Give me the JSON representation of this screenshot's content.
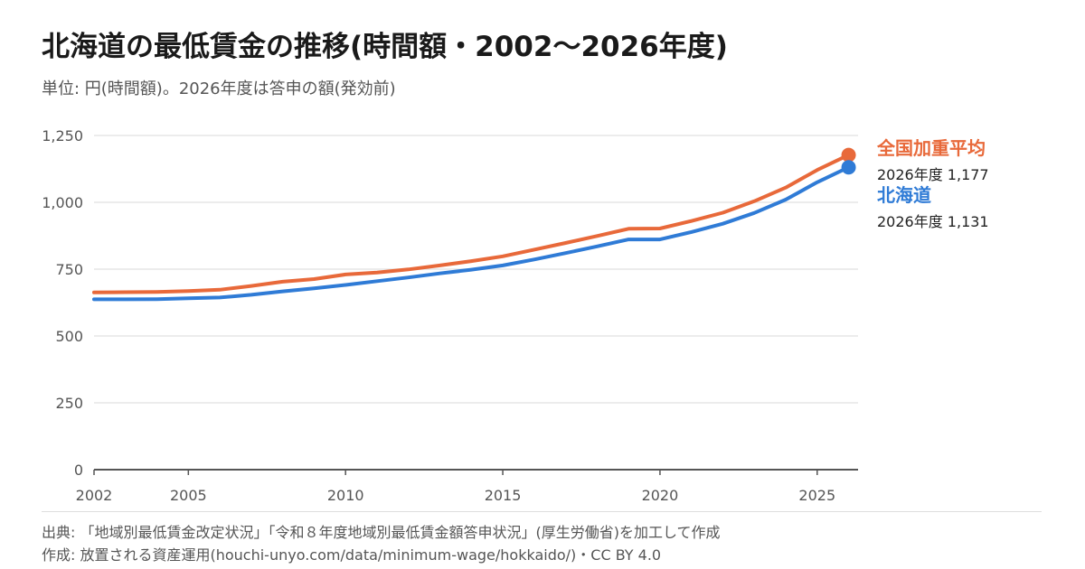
{
  "title": "北海道の最低賃金の推移(時間額・2002〜2026年度)",
  "subtitle": "単位: 円(時間額)。2026年度は答申の額(発効前)",
  "source": "出典: 「地域別最低賃金改定状況」「令和８年度地域別最低賃金額答申状況」(厚生労働省)を加工して作成",
  "credit": "作成: 放置される資産運用(houchi-unyo.com/data/minimum-wage/hokkaido/)・CC BY 4.0",
  "colors": {
    "national": "#e8693a",
    "hokkaido": "#2f7bd6",
    "grid": "#e5e5e5",
    "axis": "#555555"
  },
  "chart_data": {
    "type": "line",
    "title": "北海道の最低賃金の推移(時間額・2002〜2026年度)",
    "ylabel": "",
    "xlabel": "",
    "xlim": [
      2002,
      2026.3
    ],
    "ylim": [
      0,
      1250
    ],
    "x_ticks": [
      "2002",
      "2005",
      "2010",
      "2015",
      "2020",
      "2025"
    ],
    "y_ticks": [
      "0",
      "250",
      "500",
      "750",
      "1,000",
      "1,250"
    ],
    "grid": true,
    "x": [
      2002,
      2003,
      2004,
      2005,
      2006,
      2007,
      2008,
      2009,
      2010,
      2011,
      2012,
      2013,
      2014,
      2015,
      2016,
      2017,
      2018,
      2019,
      2020,
      2021,
      2022,
      2023,
      2024,
      2025,
      2026
    ],
    "series": [
      {
        "name": "全国加重平均",
        "color": "#e8693a",
        "values": [
          663,
          664,
          665,
          668,
          673,
          687,
          703,
          713,
          730,
          737,
          749,
          764,
          780,
          798,
          823,
          848,
          874,
          901,
          902,
          930,
          961,
          1004,
          1055,
          1121,
          1177
        ],
        "end_label": "2026年度 1,177"
      },
      {
        "name": "北海道",
        "color": "#2f7bd6",
        "values": [
          637,
          637,
          638,
          641,
          644,
          654,
          667,
          678,
          691,
          705,
          719,
          734,
          748,
          764,
          786,
          810,
          835,
          861,
          861,
          889,
          920,
          960,
          1010,
          1075,
          1131
        ],
        "end_label": "2026年度 1,131"
      }
    ]
  }
}
